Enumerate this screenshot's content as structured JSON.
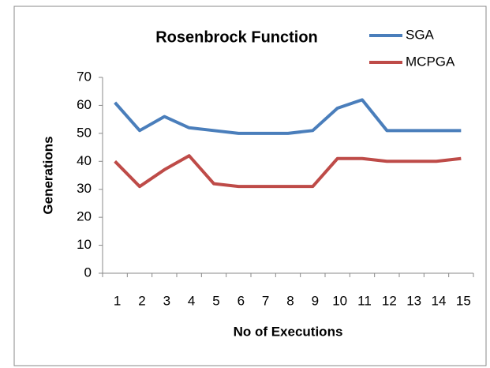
{
  "chart_data": {
    "type": "line",
    "title": "Rosenbrock Function",
    "x_label": "No of Executions",
    "y_label": "Generations",
    "categories": [
      "1",
      "2",
      "3",
      "4",
      "5",
      "6",
      "7",
      "8",
      "9",
      "10",
      "11",
      "12",
      "13",
      "14",
      "15"
    ],
    "series": [
      {
        "name": "SGA",
        "color": "#4a7ebb",
        "values": [
          61,
          51,
          56,
          52,
          51,
          50,
          50,
          50,
          51,
          59,
          62,
          51,
          51,
          51,
          51
        ]
      },
      {
        "name": "MCPGA",
        "color": "#be4b48",
        "values": [
          40,
          31,
          37,
          42,
          32,
          31,
          31,
          31,
          31,
          41,
          41,
          40,
          40,
          40,
          41
        ]
      }
    ],
    "ylim": [
      0,
      70
    ],
    "yticks": [
      0,
      10,
      20,
      30,
      40,
      50,
      60,
      70
    ],
    "legend": "top-right"
  }
}
